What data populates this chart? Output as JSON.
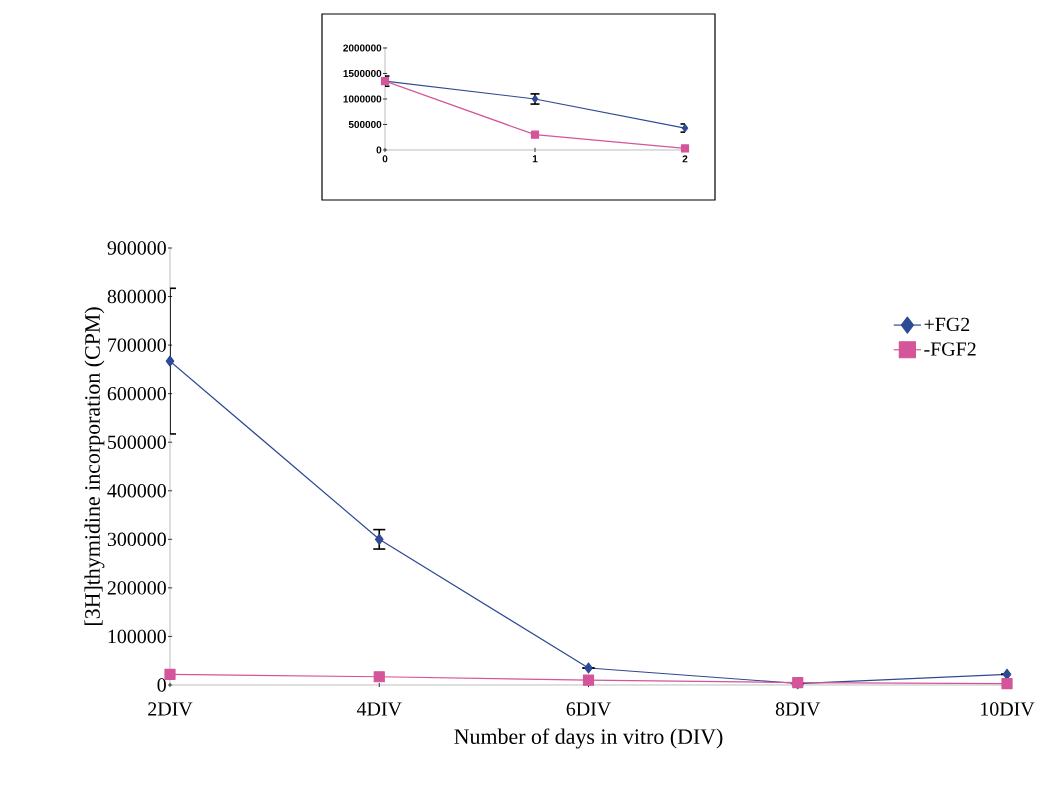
{
  "chart_data": [
    {
      "type": "line",
      "x": [
        0,
        1,
        2
      ],
      "xlim": [
        0,
        2
      ],
      "xticks": [
        0,
        1,
        2
      ],
      "ylim": [
        0,
        2000000
      ],
      "yticks": [
        0,
        500000,
        1000000,
        1500000,
        2000000
      ],
      "series": [
        {
          "color": "#2e4a94",
          "marker": "diamond",
          "values": [
            1350000,
            1000000,
            430000
          ],
          "errors": [
            100000,
            100000,
            80000
          ]
        },
        {
          "color": "#d4559a",
          "marker": "square",
          "values": [
            1350000,
            300000,
            30000
          ]
        }
      ]
    },
    {
      "type": "line",
      "xlabel": "Number of days in vitro (DIV)",
      "ylabel": "[3H]thymidine incorporation (CPM)",
      "categories": [
        "2DIV",
        "4DIV",
        "6DIV",
        "8DIV",
        "10DIV"
      ],
      "ylim": [
        0,
        900000
      ],
      "yticks": [
        0,
        100000,
        200000,
        300000,
        400000,
        500000,
        600000,
        700000,
        800000,
        900000
      ],
      "legend": "top right",
      "series": [
        {
          "name": "+FG2",
          "color": "#2e4a94",
          "marker": "diamond",
          "values": [
            667000,
            300000,
            35000,
            3000,
            22000
          ],
          "errors": [
            150000,
            20000,
            null,
            null,
            null
          ]
        },
        {
          "name": "-FGF2",
          "color": "#d4559a",
          "marker": "square",
          "values": [
            22000,
            17000,
            10000,
            5000,
            3000
          ]
        }
      ]
    }
  ]
}
